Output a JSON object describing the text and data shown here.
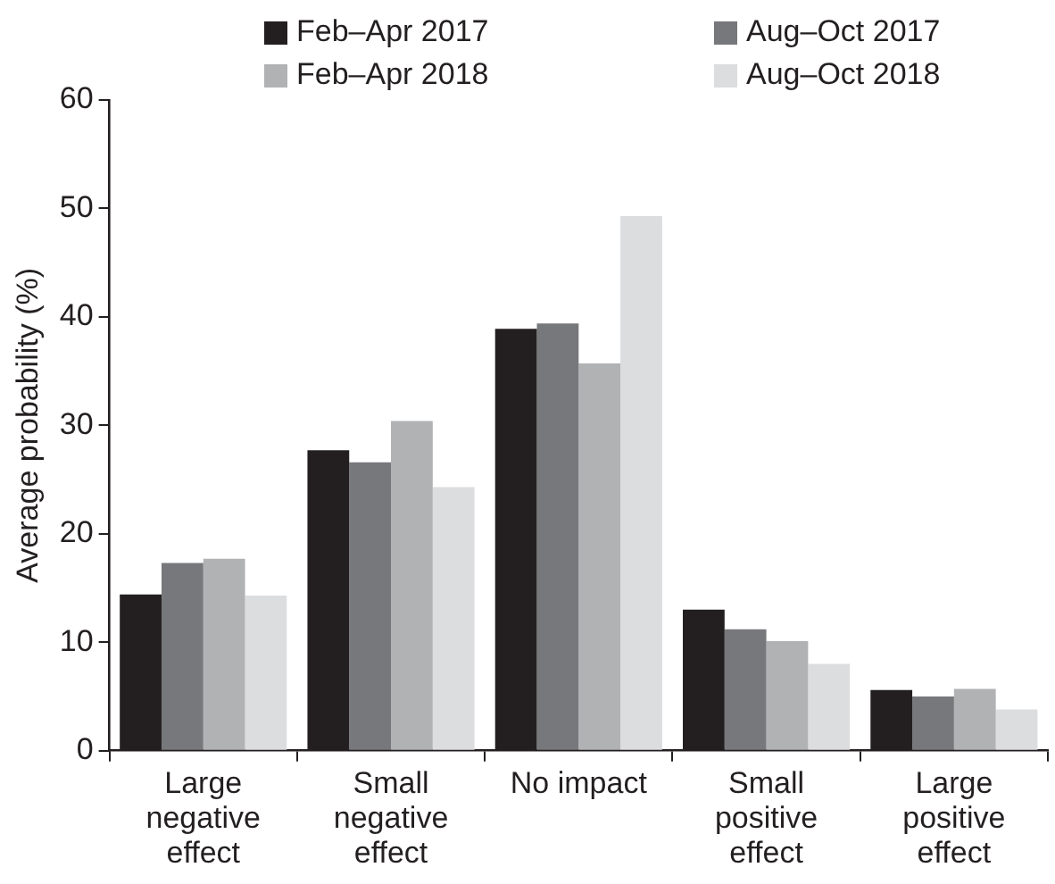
{
  "chart_data": {
    "type": "bar",
    "ylabel": "Average probability (%)",
    "categories": [
      "Large negative effect",
      "Small negative effect",
      "No impact",
      "Small positive effect",
      "Large positive effect"
    ],
    "series": [
      {
        "name": "Feb–Apr 2017",
        "color": "#231f20",
        "values": [
          14.4,
          27.7,
          38.9,
          13.0,
          5.6
        ]
      },
      {
        "name": "Aug–Oct 2017",
        "color": "#77787b",
        "values": [
          17.3,
          26.6,
          39.4,
          11.2,
          5.0
        ]
      },
      {
        "name": "Feb–Apr 2018",
        "color": "#b1b2b4",
        "values": [
          17.7,
          30.4,
          35.7,
          10.1,
          5.7
        ]
      },
      {
        "name": "Aug–Oct 2018",
        "color": "#dcdddf",
        "values": [
          14.3,
          24.3,
          49.3,
          8.0,
          3.8
        ]
      }
    ],
    "ylim": [
      0,
      60
    ],
    "yticks": [
      0,
      10,
      20,
      30,
      40,
      50,
      60
    ],
    "grid": false,
    "legend": "top"
  }
}
